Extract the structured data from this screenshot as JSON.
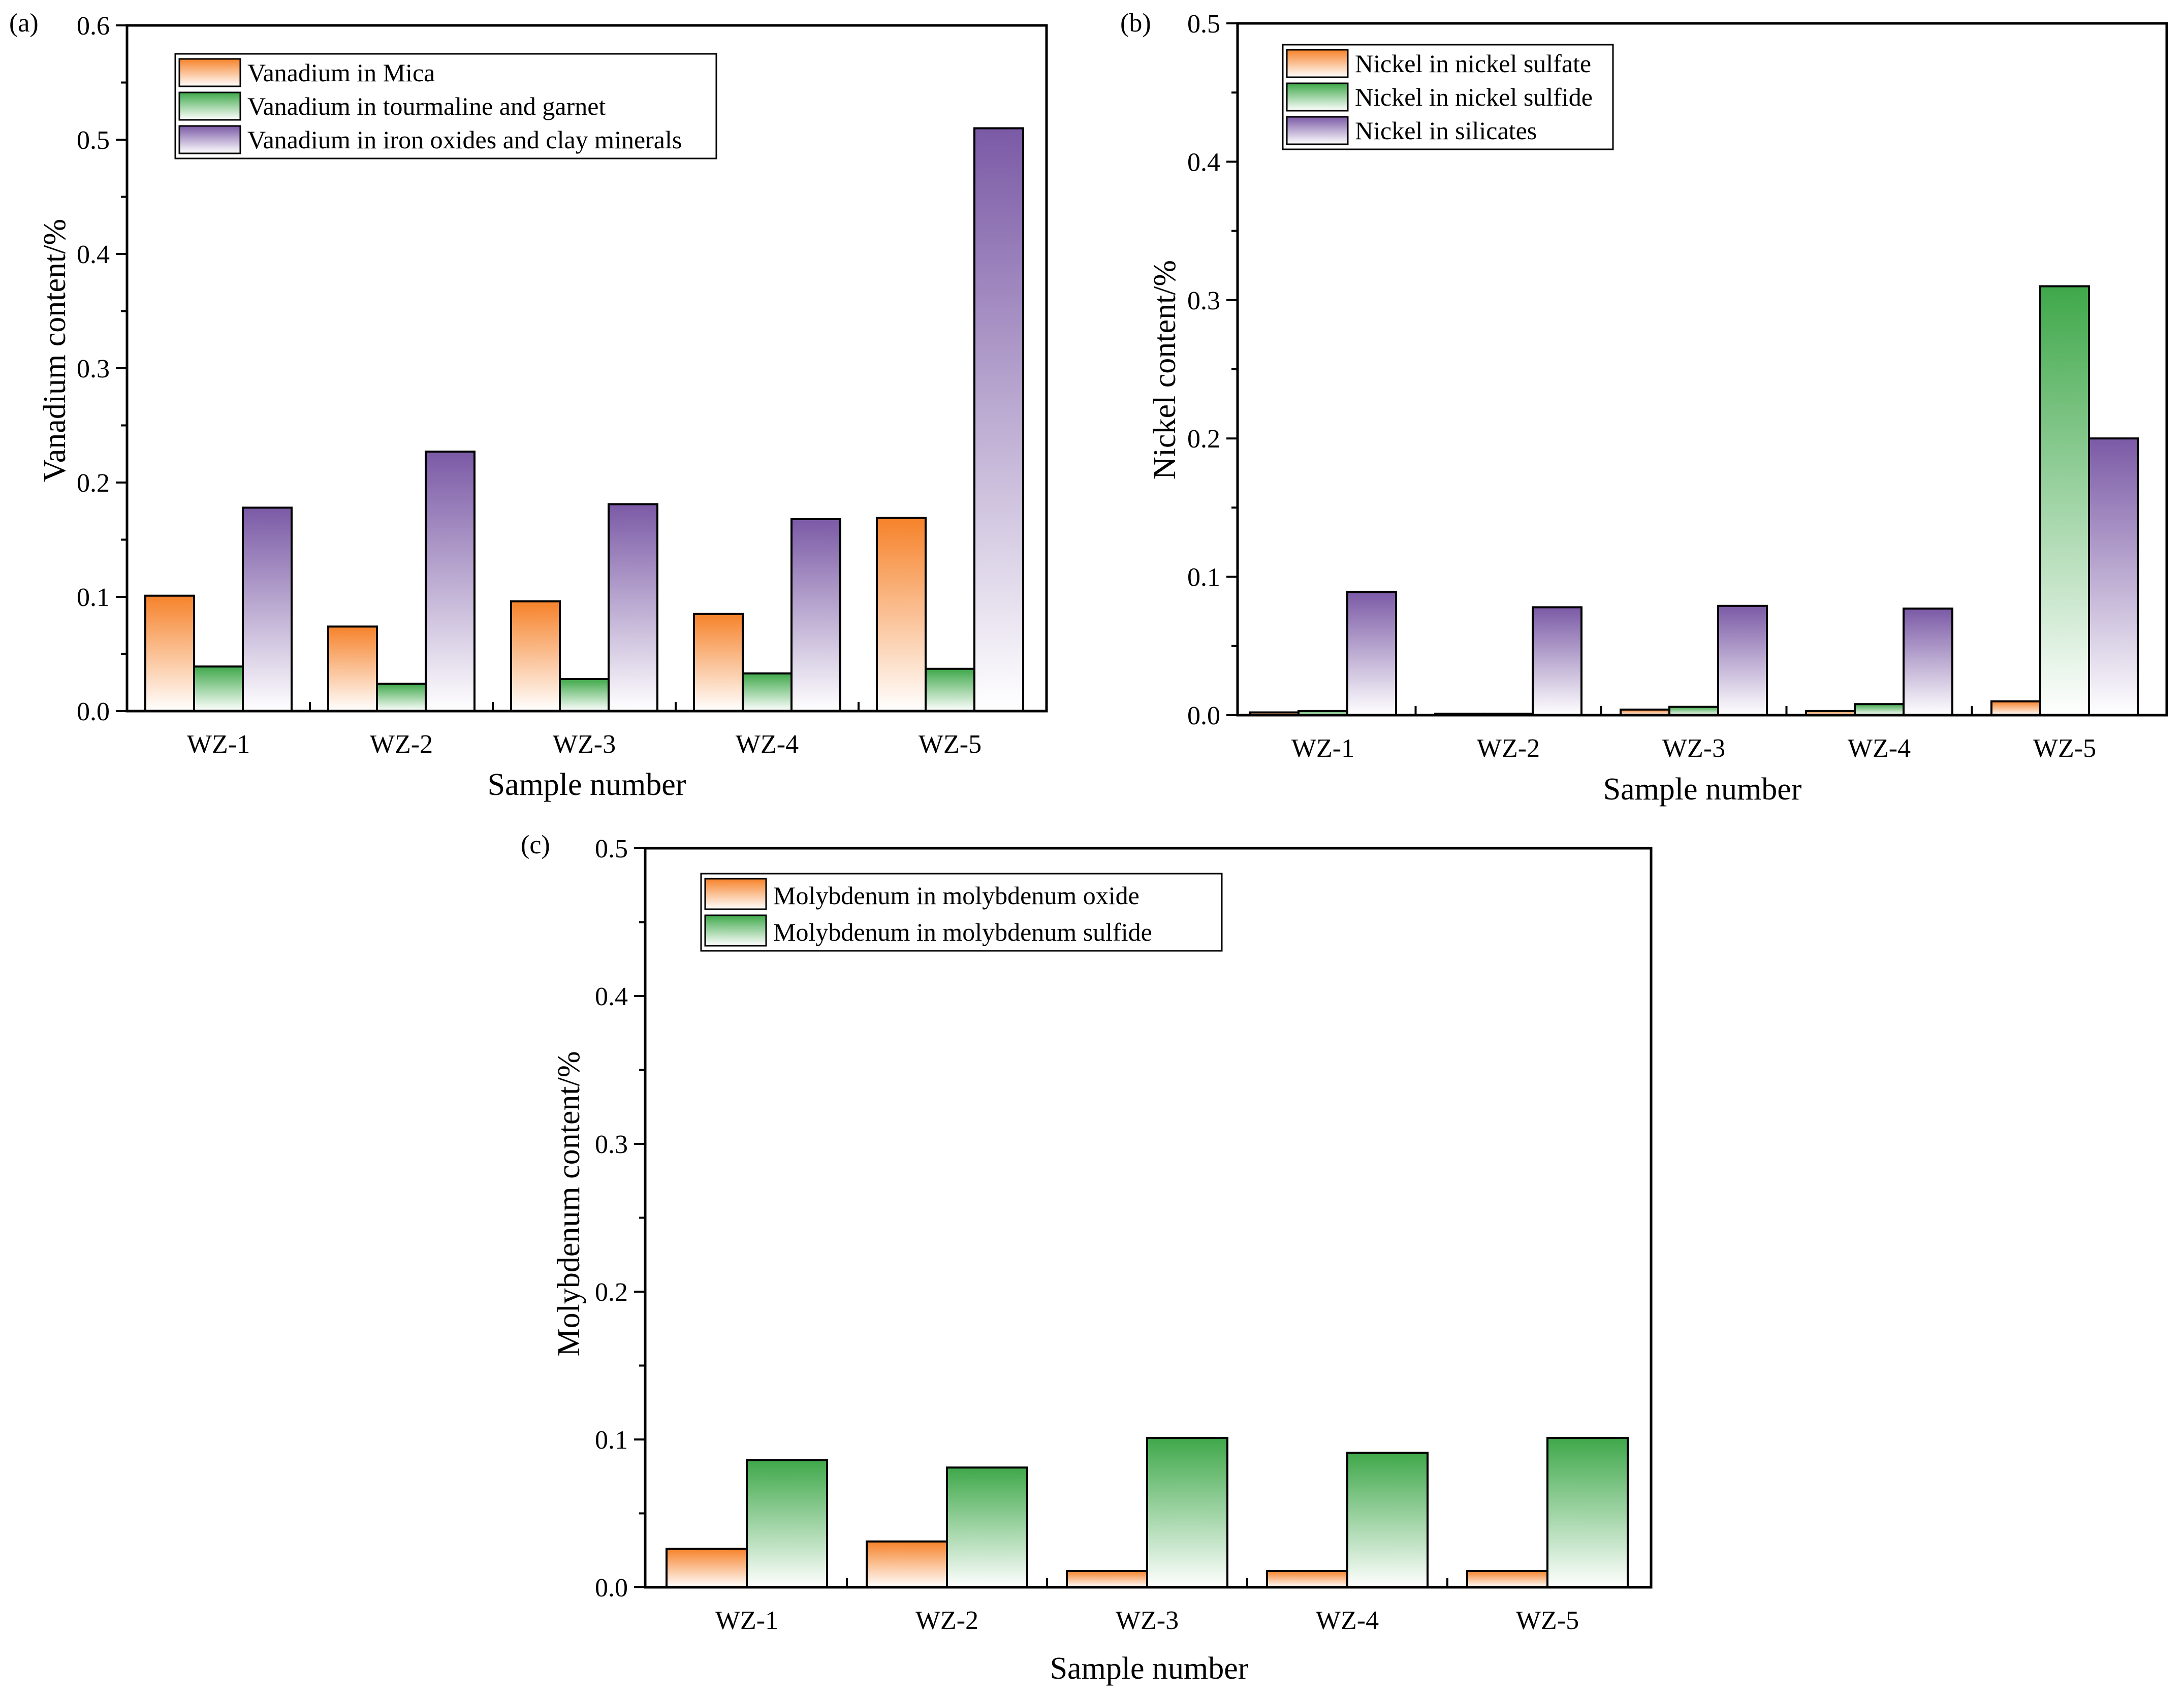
{
  "colors": {
    "orange": "#f6822a",
    "green": "#3fa84a",
    "purple": "#7b5aa6",
    "white": "#ffffff",
    "axis": "#000000"
  },
  "chart_data": [
    {
      "panel_label": "(a)",
      "type": "bar",
      "categories": [
        "WZ-1",
        "WZ-2",
        "WZ-3",
        "WZ-4",
        "WZ-5"
      ],
      "xlabel": "Sample number",
      "ylabel": "Vanadium content/%",
      "ylim": [
        0,
        0.6
      ],
      "yticks": [
        0.0,
        0.1,
        0.2,
        0.3,
        0.4,
        0.5,
        0.6
      ],
      "ytick_labels": [
        "0.0",
        "0.1",
        "0.2",
        "0.3",
        "0.4",
        "0.5",
        "0.6"
      ],
      "legend_position": "top-left",
      "series": [
        {
          "name": "Vanadium in Mica",
          "color": "orange",
          "values": [
            0.101,
            0.074,
            0.096,
            0.085,
            0.169
          ]
        },
        {
          "name": "Vanadium in tourmaline and garnet",
          "color": "green",
          "values": [
            0.039,
            0.024,
            0.028,
            0.033,
            0.037
          ]
        },
        {
          "name": "Vanadium in iron oxides and clay minerals",
          "color": "purple",
          "values": [
            0.178,
            0.227,
            0.181,
            0.168,
            0.51
          ]
        }
      ]
    },
    {
      "panel_label": "(b)",
      "type": "bar",
      "categories": [
        "WZ-1",
        "WZ-2",
        "WZ-3",
        "WZ-4",
        "WZ-5"
      ],
      "xlabel": "Sample number",
      "ylabel": "Nickel content/%",
      "ylim": [
        0,
        0.5
      ],
      "yticks": [
        0.0,
        0.1,
        0.2,
        0.3,
        0.4,
        0.5
      ],
      "ytick_labels": [
        "0.0",
        "0.1",
        "0.2",
        "0.3",
        "0.4",
        "0.5"
      ],
      "legend_position": "top-left",
      "series": [
        {
          "name": "Nickel in nickel sulfate",
          "color": "orange",
          "values": [
            0.002,
            0.001,
            0.004,
            0.003,
            0.01
          ]
        },
        {
          "name": "Nickel in nickel sulfide",
          "color": "green",
          "values": [
            0.003,
            0.001,
            0.006,
            0.008,
            0.31
          ]
        },
        {
          "name": "Nickel in silicates",
          "color": "purple",
          "values": [
            0.089,
            0.078,
            0.079,
            0.077,
            0.2
          ]
        }
      ]
    },
    {
      "panel_label": "(c)",
      "type": "bar",
      "categories": [
        "WZ-1",
        "WZ-2",
        "WZ-3",
        "WZ-4",
        "WZ-5"
      ],
      "xlabel": "Sample number",
      "ylabel": "Molybdenum content/%",
      "ylim": [
        0,
        0.5
      ],
      "yticks": [
        0.0,
        0.1,
        0.2,
        0.3,
        0.4,
        0.5
      ],
      "ytick_labels": [
        "0.0",
        "0.1",
        "0.2",
        "0.3",
        "0.4",
        "0.5"
      ],
      "legend_position": "top-left",
      "series": [
        {
          "name": "Molybdenum in molybdenum oxide",
          "color": "orange",
          "values": [
            0.026,
            0.031,
            0.011,
            0.011,
            0.011
          ]
        },
        {
          "name": "Molybdenum in molybdenum sulfide",
          "color": "green",
          "values": [
            0.086,
            0.081,
            0.101,
            0.091,
            0.101
          ]
        }
      ]
    }
  ]
}
